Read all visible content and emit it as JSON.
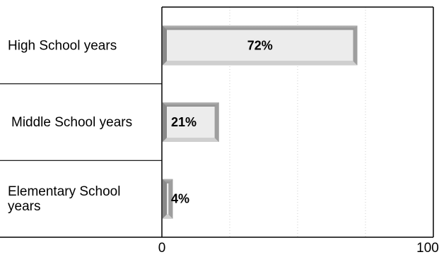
{
  "chart_data": {
    "type": "bar",
    "orientation": "horizontal",
    "categories": [
      [
        "High School years"
      ],
      [
        "Middle School years"
      ],
      [
        "Elementary School",
        "years"
      ]
    ],
    "values": [
      72,
      21,
      4
    ],
    "data_labels": [
      "72%",
      "21%",
      "4%"
    ],
    "xlim": [
      0,
      100
    ],
    "x_ticks": [
      "0",
      "100"
    ],
    "grid": true,
    "colors": {
      "bar_face": "#ececec",
      "bar_bevel_light": "#cfcfcf",
      "bar_bevel_dark": "#8a8a8a",
      "axis": "#000000",
      "grid": "#cccccc"
    }
  }
}
